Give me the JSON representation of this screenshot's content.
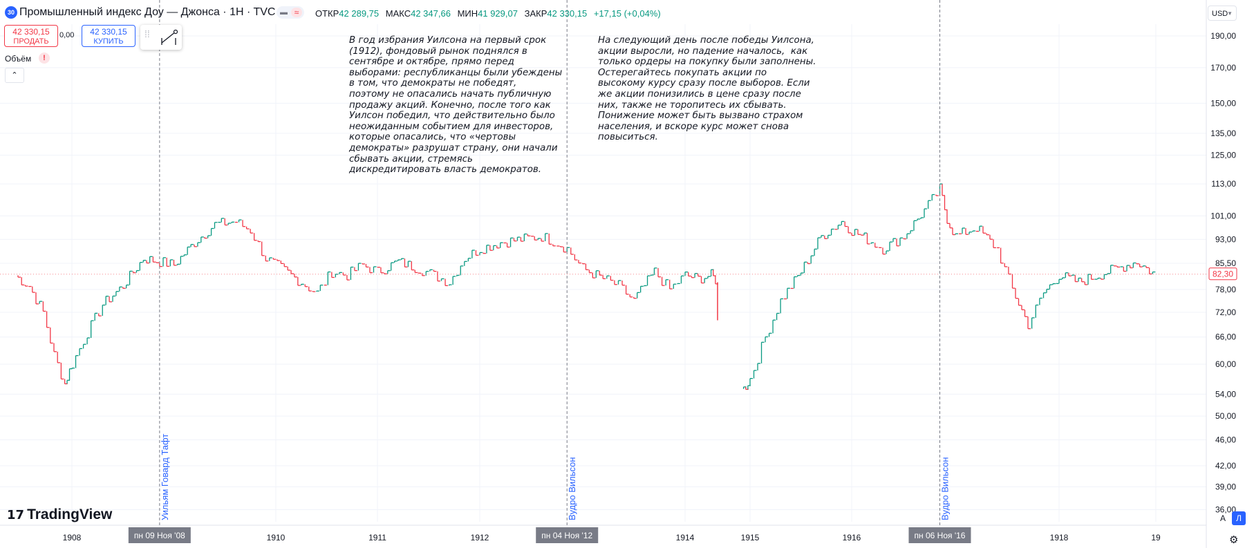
{
  "header": {
    "symbol_badge": "30",
    "title": "Промышленный индекс Доу — Джонса · 1H · TVC",
    "ohlc": {
      "open_label": "ОТКР",
      "open": "42 289,75",
      "high_label": "МАКС",
      "high": "42 347,66",
      "low_label": "МИН",
      "low": "41 929,07",
      "close_label": "ЗАКР",
      "close": "42 330,15",
      "change": "+17,15 (+0,04%)"
    },
    "sell": {
      "price": "42 330,15",
      "label": "ПРОДАТЬ"
    },
    "spread": "0,00",
    "buy": {
      "price": "42 330,15",
      "label": "КУПИТЬ"
    },
    "currency": "USD"
  },
  "indicators": {
    "volume_label": "Объём",
    "warning": "!"
  },
  "annotations": {
    "note1": "В год избрания Уилсона на первый срок\n(1912), фондовый рынок поднялся в\nсентябре и октябре, прямо перед\nвыборами: республиканцы были убеждены\nв том, что демократы не победят,\nпоэтому не опасались начать публичную\nпродажу акций. Конечно, после того как\nУилсон победил, что действительно было\nнеожиданным событием для инвесторов,\nкоторые опасались, что «чертовы\nдемократы» разрушат страну, они начали\nсбывать акции, стремясь\nдискредитировать власть демократов.",
    "note2": "На следующий день после победы Уилсона,\nакции выросли, но падение началось,  как\nтолько ордеры на покупку были заполнены.\nОстерегайтесь покупать акции по\nвысокому курсу сразу после выборов. Если\nже акции понизились в цене сразу после\nних, также не торопитесь их сбывать.\nПонижение может быть вызвано страхом\nнаселения, и вскоре курс может снова\nповыситься."
  },
  "events": [
    {
      "date": "пн 09 Ноя '08",
      "label": "Уильям Говард Тафт"
    },
    {
      "date": "пн 04 Ноя '12",
      "label": "Вудро Вильсон"
    },
    {
      "date": "пн 06 Ноя '16",
      "label": "Вудро Вильсон"
    }
  ],
  "footer": {
    "logo": "TradingView",
    "auto_btn": "A",
    "log_btn": "Л"
  },
  "chart_data": {
    "type": "line",
    "style": "step ohlc bars",
    "y_scale": "log",
    "ylim": [
      34.5,
      198
    ],
    "y_ticks": [
      "190,00",
      "170,00",
      "150,00",
      "135,00",
      "125,00",
      "113,00",
      "101,00",
      "93,00",
      "85,50",
      "78,00",
      "72,00",
      "66,00",
      "60,00",
      "54,00",
      "50,00",
      "46,00",
      "42,00",
      "39,00",
      "36,00"
    ],
    "y_tick_values": [
      190,
      170,
      150,
      135,
      125,
      113,
      101,
      93,
      85.5,
      78,
      72,
      66,
      60,
      54,
      50,
      46,
      42,
      39,
      36
    ],
    "x_ticks": [
      "1908",
      "1910",
      "1911",
      "1912",
      "1914",
      "1915",
      "1916",
      "1918",
      "19"
    ],
    "x_tick_years": [
      1908,
      1910,
      1911,
      1912,
      1914,
      1915,
      1916,
      1918,
      1919
    ],
    "last_price": "82,30",
    "last_value": 82.3,
    "up_color": "#089981",
    "down_color": "#f23645",
    "event_years": [
      1908.86,
      1912.85,
      1916.85
    ],
    "series": [
      {
        "x": [
          1907.2,
          1907.4,
          1907.6,
          1907.75,
          1907.9,
          1908.0,
          1908.15,
          1908.3,
          1908.5,
          1908.7,
          1908.86,
          1909.0,
          1909.2,
          1909.4,
          1909.6,
          1909.75,
          1909.9,
          1910.05,
          1910.25,
          1910.4,
          1910.55,
          1910.7,
          1910.85,
          1911.0,
          1911.2,
          1911.4,
          1911.55,
          1911.7,
          1911.85,
          1912.0,
          1912.2,
          1912.4,
          1912.6,
          1912.75,
          1912.85,
          1913.0,
          1913.2,
          1913.35,
          1913.5,
          1913.7,
          1913.85,
          1914.0,
          1914.2,
          1914.4,
          1914.5,
          1914.55,
          1914.9,
          1915.0,
          1915.15,
          1915.3,
          1915.5,
          1915.7,
          1915.9,
          1916.0,
          1916.15,
          1916.3,
          1916.5,
          1916.7,
          1916.85,
          1916.92,
          1917.0,
          1917.2,
          1917.4,
          1917.55,
          1917.7,
          1917.85,
          1918.0,
          1918.2,
          1918.4,
          1918.6,
          1918.8,
          1919.0
        ],
        "values": [
          82,
          79,
          72,
          62,
          56,
          60,
          67,
          74,
          79,
          87,
          86,
          85,
          92,
          98,
          99,
          96,
          87,
          84,
          80,
          77,
          83,
          82,
          85,
          83,
          86,
          84,
          82,
          80,
          87,
          90,
          92,
          93,
          94,
          92,
          90,
          84,
          81,
          79,
          75,
          83,
          78,
          82,
          81,
          82,
          80,
          70,
          55,
          57,
          66,
          75,
          83,
          94,
          99,
          96,
          93,
          90,
          94,
          103,
          111,
          100,
          94,
          97,
          90,
          78,
          69,
          77,
          82,
          80,
          82,
          84,
          86,
          82
        ]
      }
    ]
  }
}
